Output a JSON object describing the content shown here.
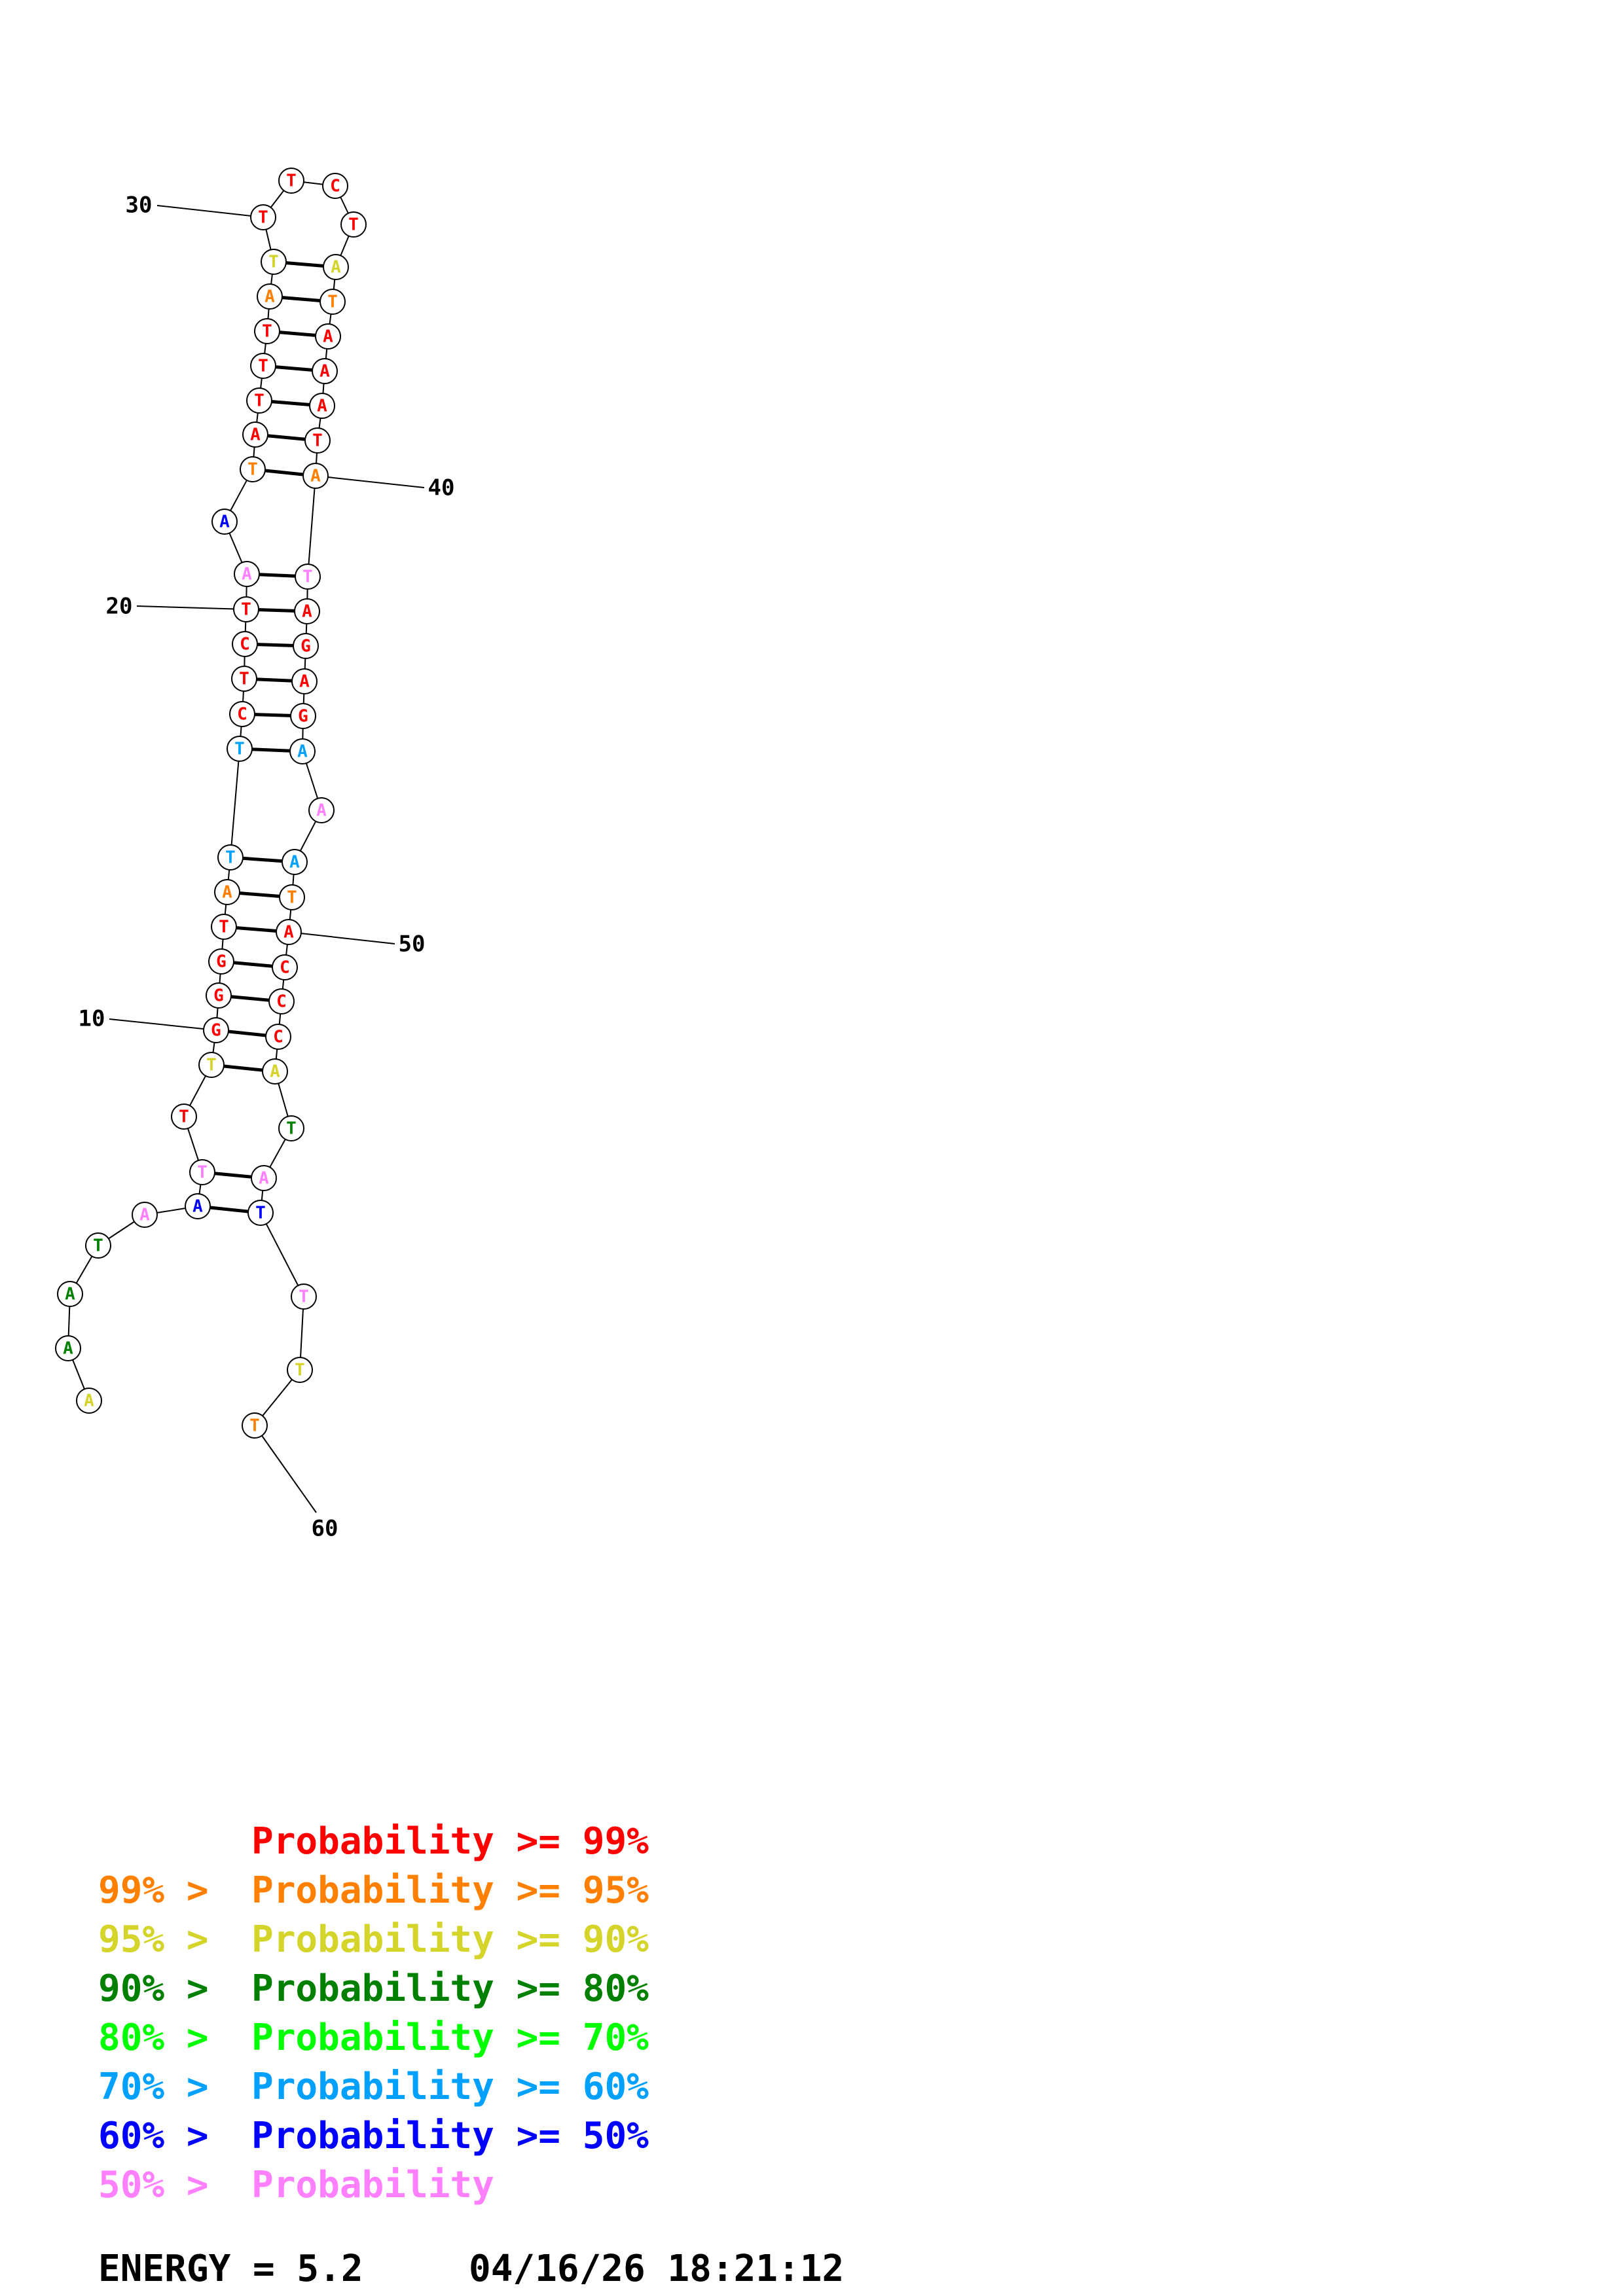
{
  "colors": {
    "red": "#ff0000",
    "orange": "#ff8000",
    "yellow": "#d4d42a",
    "darkgreen": "#008000",
    "green": "#00ff00",
    "cyan": "#00a0ff",
    "blue": "#0000ff",
    "pink": "#ff80ff"
  },
  "sequence": [
    {
      "pos": 1,
      "base": "A",
      "color": "yellow"
    },
    {
      "pos": 2,
      "base": "A",
      "color": "darkgreen"
    },
    {
      "pos": 3,
      "base": "A",
      "color": "darkgreen"
    },
    {
      "pos": 4,
      "base": "T",
      "color": "darkgreen"
    },
    {
      "pos": 5,
      "base": "A",
      "color": "pink"
    },
    {
      "pos": 6,
      "base": "A",
      "color": "blue"
    },
    {
      "pos": 7,
      "base": "T",
      "color": "pink"
    },
    {
      "pos": 8,
      "base": "T",
      "color": "red"
    },
    {
      "pos": 9,
      "base": "T",
      "color": "yellow"
    },
    {
      "pos": 10,
      "base": "G",
      "color": "red"
    },
    {
      "pos": 11,
      "base": "G",
      "color": "red"
    },
    {
      "pos": 12,
      "base": "G",
      "color": "red"
    },
    {
      "pos": 13,
      "base": "T",
      "color": "red"
    },
    {
      "pos": 14,
      "base": "A",
      "color": "orange"
    },
    {
      "pos": 15,
      "base": "T",
      "color": "cyan"
    },
    {
      "pos": 16,
      "base": "T",
      "color": "cyan"
    },
    {
      "pos": 17,
      "base": "C",
      "color": "red"
    },
    {
      "pos": 18,
      "base": "T",
      "color": "red"
    },
    {
      "pos": 19,
      "base": "C",
      "color": "red"
    },
    {
      "pos": 20,
      "base": "T",
      "color": "red"
    },
    {
      "pos": 21,
      "base": "A",
      "color": "pink"
    },
    {
      "pos": 22,
      "base": "A",
      "color": "blue"
    },
    {
      "pos": 23,
      "base": "T",
      "color": "orange"
    },
    {
      "pos": 24,
      "base": "A",
      "color": "red"
    },
    {
      "pos": 25,
      "base": "T",
      "color": "red"
    },
    {
      "pos": 26,
      "base": "T",
      "color": "red"
    },
    {
      "pos": 27,
      "base": "T",
      "color": "red"
    },
    {
      "pos": 28,
      "base": "A",
      "color": "orange"
    },
    {
      "pos": 29,
      "base": "T",
      "color": "yellow"
    },
    {
      "pos": 30,
      "base": "T",
      "color": "red"
    },
    {
      "pos": 31,
      "base": "T",
      "color": "red"
    },
    {
      "pos": 32,
      "base": "C",
      "color": "red"
    },
    {
      "pos": 33,
      "base": "T",
      "color": "red"
    },
    {
      "pos": 34,
      "base": "A",
      "color": "yellow"
    },
    {
      "pos": 35,
      "base": "T",
      "color": "orange"
    },
    {
      "pos": 36,
      "base": "A",
      "color": "red"
    },
    {
      "pos": 37,
      "base": "A",
      "color": "red"
    },
    {
      "pos": 38,
      "base": "A",
      "color": "red"
    },
    {
      "pos": 39,
      "base": "T",
      "color": "red"
    },
    {
      "pos": 40,
      "base": "A",
      "color": "orange"
    },
    {
      "pos": 41,
      "base": "T",
      "color": "pink"
    },
    {
      "pos": 42,
      "base": "A",
      "color": "red"
    },
    {
      "pos": 43,
      "base": "G",
      "color": "red"
    },
    {
      "pos": 44,
      "base": "A",
      "color": "red"
    },
    {
      "pos": 45,
      "base": "G",
      "color": "red"
    },
    {
      "pos": 46,
      "base": "A",
      "color": "cyan"
    },
    {
      "pos": 47,
      "base": "A",
      "color": "pink"
    },
    {
      "pos": 48,
      "base": "A",
      "color": "cyan"
    },
    {
      "pos": 49,
      "base": "T",
      "color": "orange"
    },
    {
      "pos": 50,
      "base": "A",
      "color": "red"
    },
    {
      "pos": 51,
      "base": "C",
      "color": "red"
    },
    {
      "pos": 52,
      "base": "C",
      "color": "red"
    },
    {
      "pos": 53,
      "base": "C",
      "color": "red"
    },
    {
      "pos": 54,
      "base": "A",
      "color": "yellow"
    },
    {
      "pos": 55,
      "base": "T",
      "color": "darkgreen"
    },
    {
      "pos": 56,
      "base": "A",
      "color": "pink"
    },
    {
      "pos": 57,
      "base": "T",
      "color": "blue"
    },
    {
      "pos": 58,
      "base": "T",
      "color": "pink"
    },
    {
      "pos": 59,
      "base": "T",
      "color": "yellow"
    },
    {
      "pos": 60,
      "base": "T",
      "color": "orange"
    }
  ],
  "pairs": [
    [
      6,
      57
    ],
    [
      7,
      56
    ],
    [
      9,
      54
    ],
    [
      10,
      53
    ],
    [
      11,
      52
    ],
    [
      12,
      51
    ],
    [
      13,
      50
    ],
    [
      14,
      49
    ],
    [
      15,
      48
    ],
    [
      16,
      46
    ],
    [
      17,
      45
    ],
    [
      18,
      44
    ],
    [
      19,
      43
    ],
    [
      20,
      42
    ],
    [
      21,
      41
    ],
    [
      23,
      40
    ],
    [
      24,
      39
    ],
    [
      25,
      38
    ],
    [
      26,
      37
    ],
    [
      27,
      36
    ],
    [
      28,
      35
    ],
    [
      29,
      34
    ]
  ],
  "position_labels": [
    "10",
    "20",
    "30",
    "40",
    "50",
    "60"
  ],
  "legend": [
    {
      "prefix": "",
      "label": "Probability >= 99%",
      "color": "red"
    },
    {
      "prefix": "99% > ",
      "label": "Probability >= 95%",
      "color": "orange"
    },
    {
      "prefix": "95% > ",
      "label": "Probability >= 90%",
      "color": "yellow"
    },
    {
      "prefix": "90% > ",
      "label": "Probability >= 80%",
      "color": "darkgreen"
    },
    {
      "prefix": "80% > ",
      "label": "Probability >= 70%",
      "color": "green"
    },
    {
      "prefix": "70% > ",
      "label": "Probability >= 60%",
      "color": "cyan"
    },
    {
      "prefix": "60% > ",
      "label": "Probability >= 50%",
      "color": "blue"
    },
    {
      "prefix": "50% > ",
      "label": "Probability",
      "color": "pink"
    }
  ],
  "footer": {
    "energy": "ENERGY = 5.2",
    "timestamp": "04/16/26 18:21:12"
  }
}
